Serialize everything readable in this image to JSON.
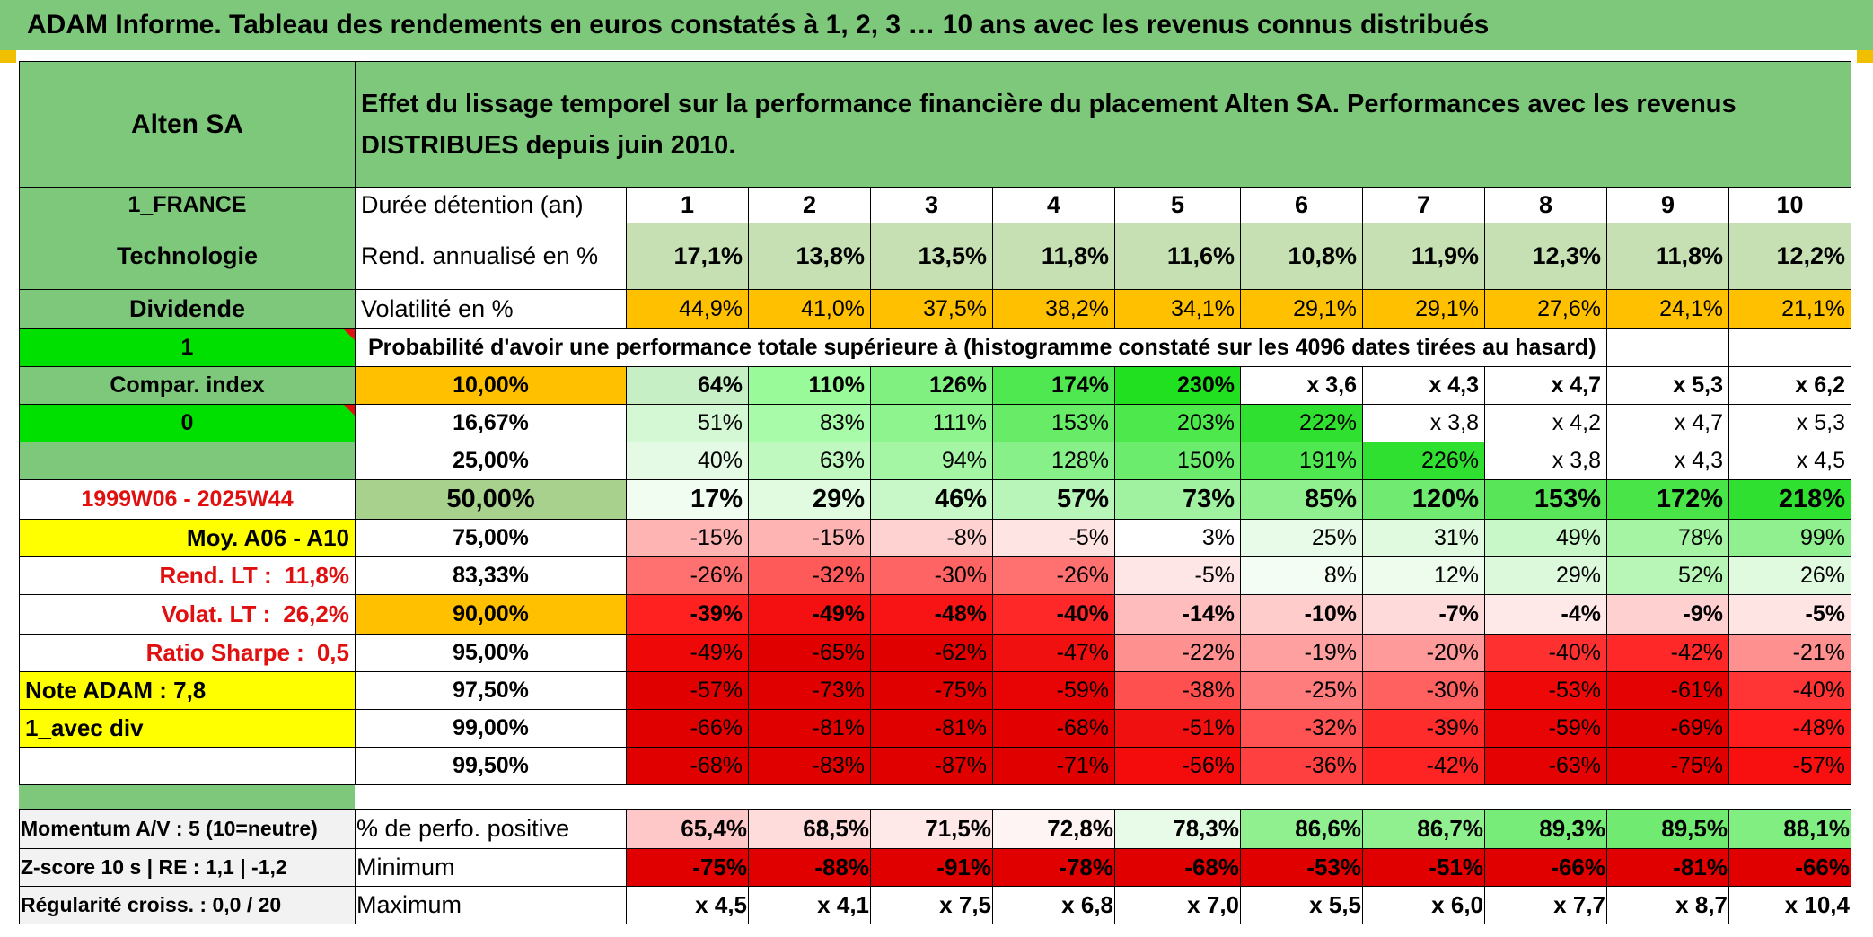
{
  "banner_title": "ADAM Informe. Tableau des rendements en euros constatés à 1, 2, 3 … 10 ans avec les revenus connus distribués",
  "company": "Alten SA",
  "description": "Effet du lissage temporel sur la performance financière du placement Alten SA. Performances avec les revenus DISTRIBUES depuis juin 2010.",
  "left_labels": {
    "country": "1_FRANCE",
    "sector": "Technologie",
    "dividend": "Dividende",
    "flag1": "1",
    "compar_index": "Compar. index",
    "flag0": "0",
    "period": "1999W06 - 2025W44",
    "moy": "Moy. A06 - A10",
    "rend_lt_label": "Rend. LT :",
    "rend_lt_value": "11,8%",
    "volat_lt_label": "Volat. LT :",
    "volat_lt_value": "26,2%",
    "sharpe_label": "Ratio Sharpe :",
    "sharpe_value": "0,5",
    "note": "Note ADAM : 7,8",
    "avec_div": "1_avec div"
  },
  "header": {
    "duree_label": "Durée détention (an)",
    "years": [
      "1",
      "2",
      "3",
      "4",
      "5",
      "6",
      "7",
      "8",
      "9",
      "10"
    ],
    "rend_label": "Rend. annualisé en %",
    "rend": [
      "17,1%",
      "13,8%",
      "13,5%",
      "11,8%",
      "11,6%",
      "10,8%",
      "11,9%",
      "12,3%",
      "11,8%",
      "12,2%"
    ],
    "vol_label": "Volatilité en %",
    "vol": [
      "44,9%",
      "41,0%",
      "37,5%",
      "38,2%",
      "34,1%",
      "29,1%",
      "29,1%",
      "27,6%",
      "24,1%",
      "21,1%"
    ],
    "prob_title": "Probabilité d'avoir une performance totale supérieure à (histogramme constaté sur les 4096 dates tirées au hasard)"
  },
  "quantiles": [
    {
      "q": "10,00%",
      "v": [
        "64%",
        "110%",
        "126%",
        "174%",
        "230%",
        "x 3,6",
        "x 4,3",
        "x 4,7",
        "x 5,3",
        "x 6,2"
      ]
    },
    {
      "q": "16,67%",
      "v": [
        "51%",
        "83%",
        "111%",
        "153%",
        "203%",
        "222%",
        "x 3,8",
        "x 4,2",
        "x 4,7",
        "x 5,3"
      ]
    },
    {
      "q": "25,00%",
      "v": [
        "40%",
        "63%",
        "94%",
        "128%",
        "150%",
        "191%",
        "226%",
        "x 3,8",
        "x 4,3",
        "x 4,5"
      ]
    },
    {
      "q": "50,00%",
      "v": [
        "17%",
        "29%",
        "46%",
        "57%",
        "73%",
        "85%",
        "120%",
        "153%",
        "172%",
        "218%"
      ]
    },
    {
      "q": "75,00%",
      "v": [
        "-15%",
        "-15%",
        "-8%",
        "-5%",
        "3%",
        "25%",
        "31%",
        "49%",
        "78%",
        "99%"
      ]
    },
    {
      "q": "83,33%",
      "v": [
        "-26%",
        "-32%",
        "-30%",
        "-26%",
        "-5%",
        "8%",
        "12%",
        "29%",
        "52%",
        "26%"
      ]
    },
    {
      "q": "90,00%",
      "v": [
        "-39%",
        "-49%",
        "-48%",
        "-40%",
        "-14%",
        "-10%",
        "-7%",
        "-4%",
        "-9%",
        "-5%"
      ]
    },
    {
      "q": "95,00%",
      "v": [
        "-49%",
        "-65%",
        "-62%",
        "-47%",
        "-22%",
        "-19%",
        "-20%",
        "-40%",
        "-42%",
        "-21%"
      ]
    },
    {
      "q": "97,50%",
      "v": [
        "-57%",
        "-73%",
        "-75%",
        "-59%",
        "-38%",
        "-25%",
        "-30%",
        "-53%",
        "-61%",
        "-40%"
      ]
    },
    {
      "q": "99,00%",
      "v": [
        "-66%",
        "-81%",
        "-81%",
        "-68%",
        "-51%",
        "-32%",
        "-39%",
        "-59%",
        "-69%",
        "-48%"
      ]
    },
    {
      "q": "99,50%",
      "v": [
        "-68%",
        "-83%",
        "-87%",
        "-71%",
        "-56%",
        "-36%",
        "-42%",
        "-63%",
        "-75%",
        "-57%"
      ]
    }
  ],
  "quantile_colors": [
    [
      "#c6efc6",
      "#98fa98",
      "#80f080",
      "#50e850",
      "#20e020",
      "#ffffff",
      "#ffffff",
      "#ffffff",
      "#ffffff",
      "#ffffff"
    ],
    [
      "#d4f7d4",
      "#a8fba8",
      "#8ef58e",
      "#68ec68",
      "#4ce84c",
      "#30e030",
      "#ffffff",
      "#ffffff",
      "#ffffff",
      "#ffffff"
    ],
    [
      "#e4fae4",
      "#c0f9c0",
      "#a4f5a4",
      "#88f088",
      "#6cec6c",
      "#50e850",
      "#30e030",
      "#ffffff",
      "#ffffff",
      "#ffffff"
    ],
    [
      "#f0fdf0",
      "#e0fbe0",
      "#c8f8c8",
      "#b8f5b8",
      "#a0f2a0",
      "#90f090",
      "#70ea70",
      "#58e658",
      "#48e448",
      "#30e030"
    ],
    [
      "#ffb4b4",
      "#ffb4b4",
      "#ffd2d2",
      "#ffe4e4",
      "#ffffff",
      "#e8fbe8",
      "#e0fae0",
      "#c8f8c8",
      "#a4f4a4",
      "#90f090"
    ],
    [
      "#ff7070",
      "#ff5a5a",
      "#ff6464",
      "#ff7070",
      "#ffe6e6",
      "#f4fdf4",
      "#eefcee",
      "#dcf9dc",
      "#b8f6b8",
      "#e0fae0"
    ],
    [
      "#ff2020",
      "#f41010",
      "#f81414",
      "#ff2828",
      "#ffbcbc",
      "#ffcccc",
      "#ffdada",
      "#ffe8e8",
      "#ffd0d0",
      "#ffe4e4"
    ],
    [
      "#ee0808",
      "#e00000",
      "#e00000",
      "#f01010",
      "#ff9090",
      "#ffa0a0",
      "#ff9a9a",
      "#ff3030",
      "#ff2828",
      "#ff9090"
    ],
    [
      "#e00000",
      "#e00000",
      "#e00000",
      "#e80404",
      "#ff5050",
      "#ff7c7c",
      "#ff6060",
      "#ee0808",
      "#e40202",
      "#ff3434"
    ],
    [
      "#e00000",
      "#e00000",
      "#e00000",
      "#e20000",
      "#f01010",
      "#ff5252",
      "#ff2c2c",
      "#e80404",
      "#e00000",
      "#ff1c1c"
    ],
    [
      "#e00000",
      "#e00000",
      "#e00000",
      "#e00000",
      "#f40c0c",
      "#ff4040",
      "#ff2424",
      "#e40202",
      "#e00000",
      "#f81010"
    ]
  ],
  "footer": {
    "momentum": "Momentum A/V : 5 (10=neutre)",
    "zscore": "Z-score 10 s | RE : 1,1 | -1,2",
    "regularite": "Régularité croiss. : 0,0 / 20",
    "pos_label": "% de perfo. positive",
    "pos": [
      "65,4%",
      "68,5%",
      "71,5%",
      "72,8%",
      "78,3%",
      "86,6%",
      "86,7%",
      "89,3%",
      "89,5%",
      "88,1%"
    ],
    "pos_colors": [
      "#ffc8c8",
      "#ffdcdc",
      "#ffe8e8",
      "#fff4f4",
      "#e8fbe8",
      "#90f090",
      "#90f090",
      "#78ec78",
      "#70ea70",
      "#80ee80"
    ],
    "min_label": "Minimum",
    "min": [
      "-75%",
      "-88%",
      "-91%",
      "-78%",
      "-68%",
      "-53%",
      "-51%",
      "-66%",
      "-81%",
      "-66%"
    ],
    "max_label": "Maximum",
    "max": [
      "x 4,5",
      "x 4,1",
      "x 7,5",
      "x 6,8",
      "x 7,0",
      "x 5,5",
      "x 6,0",
      "x 7,7",
      "x 8,7",
      "x 10,4"
    ]
  },
  "colors": {
    "header_green": "#7ec87c",
    "rend_green": "#c6e0b4",
    "orange": "#ffc000",
    "yellow": "#ffff00",
    "bright_green": "#00e000",
    "min_red": "#e00000"
  }
}
